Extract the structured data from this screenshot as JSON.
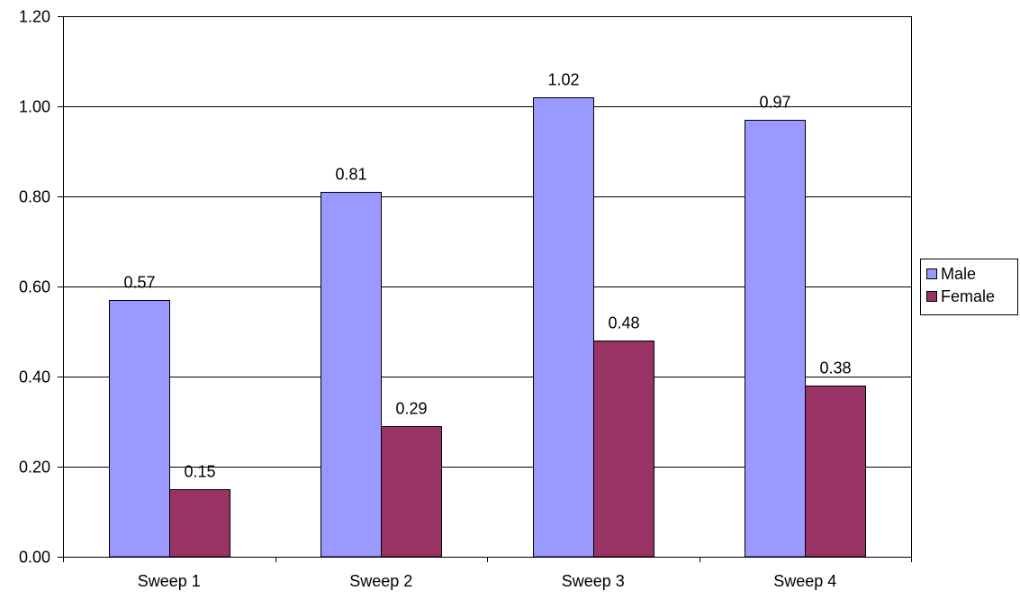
{
  "chart_data": {
    "type": "bar",
    "categories": [
      "Sweep 1",
      "Sweep 2",
      "Sweep 3",
      "Sweep 4"
    ],
    "series": [
      {
        "name": "Male",
        "values": [
          0.57,
          0.81,
          1.02,
          0.97
        ],
        "color": "#9999FF"
      },
      {
        "name": "Female",
        "values": [
          0.15,
          0.29,
          0.48,
          0.38
        ],
        "color": "#993366"
      }
    ],
    "data_labels": [
      [
        "0.57",
        "0.81",
        "1.02",
        "0.97"
      ],
      [
        "0.15",
        "0.29",
        "0.48",
        "0.38"
      ]
    ],
    "yticks": [
      "0.00",
      "0.20",
      "0.40",
      "0.60",
      "0.80",
      "1.00",
      "1.20"
    ],
    "ylim": [
      0,
      1.2
    ],
    "grid": true,
    "legend_position": "right",
    "title": "",
    "xlabel": "",
    "ylabel": ""
  }
}
